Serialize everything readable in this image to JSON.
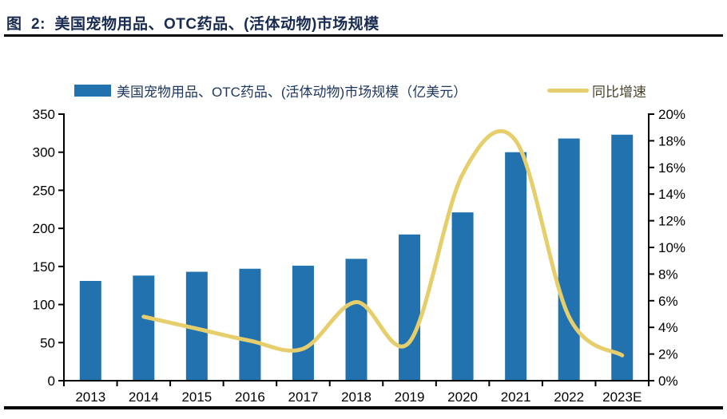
{
  "header": {
    "title": "图  2:  美国宠物用品、OTC药品、(活体动物)市场规模"
  },
  "legend": {
    "bar_label": "美国宠物用品、OTC药品、(活体动物)市场规模（亿美元）",
    "line_label": "同比增速"
  },
  "colors": {
    "bar": "#2272B0",
    "line": "#E7CE6C",
    "title_text": "#192B50",
    "legend_bar_text": "#1F3860",
    "legend_line_text": "#4B442F",
    "axis": "#000000",
    "rule": "#000000"
  },
  "chart_data": {
    "type": "combo",
    "title": "图 2: 美国宠物用品、OTC药品、(活体动物)市场规模",
    "categories": [
      "2013",
      "2014",
      "2015",
      "2016",
      "2017",
      "2018",
      "2019",
      "2020",
      "2021",
      "2022",
      "2023E"
    ],
    "series": [
      {
        "name": "美国宠物用品、OTC药品、(活体动物)市场规模（亿美元）",
        "type": "bar",
        "axis": "left",
        "color": "#2272B0",
        "values": [
          131,
          138,
          143,
          147,
          151,
          160,
          192,
          221,
          300,
          318,
          323
        ]
      },
      {
        "name": "同比增速",
        "type": "line",
        "axis": "right",
        "color": "#E7CE6C",
        "values": [
          null,
          4.8,
          3.9,
          3.0,
          2.4,
          5.9,
          2.9,
          15.5,
          18.0,
          4.8,
          1.9
        ]
      }
    ],
    "left_axis": {
      "min": 0,
      "max": 350,
      "step": 50,
      "tick_labels": [
        "0",
        "50",
        "100",
        "150",
        "200",
        "250",
        "300",
        "350"
      ]
    },
    "right_axis": {
      "min": 0,
      "max": 20,
      "step": 2,
      "unit": "%",
      "tick_labels": [
        "0%",
        "2%",
        "4%",
        "6%",
        "8%",
        "10%",
        "12%",
        "14%",
        "16%",
        "18%",
        "20%"
      ]
    },
    "grid": false,
    "legend_position": "top"
  }
}
